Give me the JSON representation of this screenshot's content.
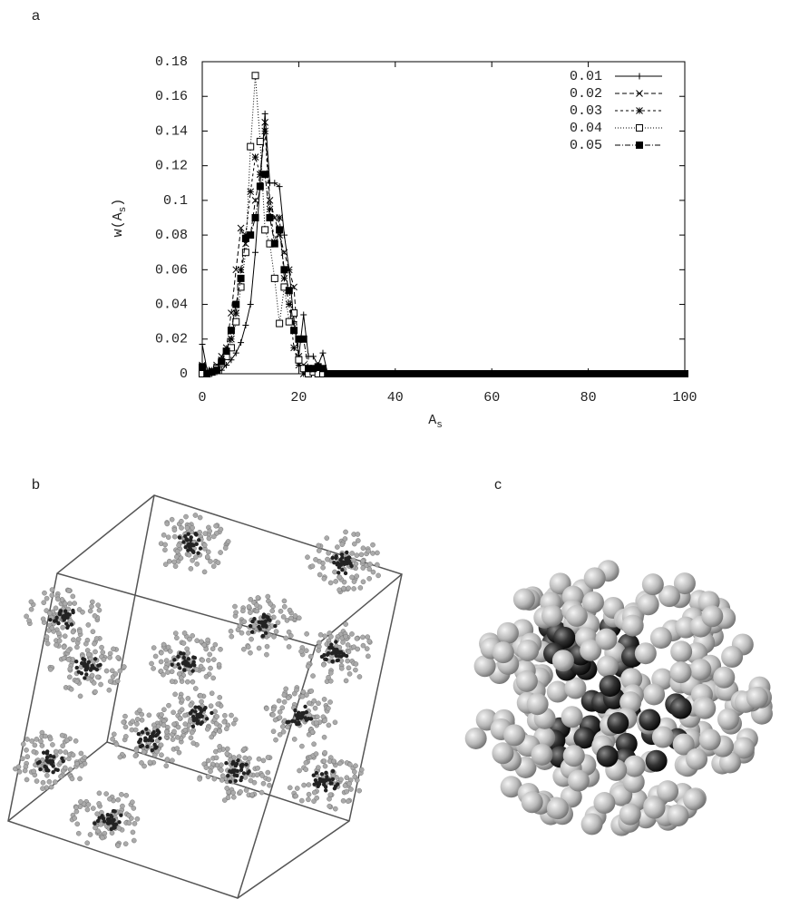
{
  "panel_labels": [
    "a",
    "b",
    "c"
  ],
  "chart_data": {
    "type": "line",
    "xlabel": {
      "text": "A",
      "subscript": "s"
    },
    "ylabel": {
      "text": "w(A",
      "subscript": "s",
      "suffix": ")"
    },
    "xlim": [
      0,
      100
    ],
    "ylim": [
      0,
      0.18
    ],
    "xticks": [
      0,
      20,
      40,
      60,
      80,
      100
    ],
    "yticks": [
      0,
      0.02,
      0.04,
      0.06,
      0.08,
      0.1,
      0.12,
      0.14,
      0.16,
      0.18
    ],
    "legend": "upper-right",
    "x": [
      0,
      1,
      2,
      3,
      4,
      5,
      6,
      7,
      8,
      9,
      10,
      11,
      12,
      13,
      14,
      15,
      16,
      17,
      18,
      19,
      20,
      21,
      22,
      23,
      24,
      25,
      26,
      27,
      28,
      29,
      30,
      31,
      32,
      33,
      34,
      35,
      36,
      37,
      38,
      39,
      40,
      41,
      42,
      43,
      44,
      45,
      46,
      47,
      48,
      49,
      50,
      51,
      52,
      53,
      54,
      55,
      56,
      57,
      58,
      59,
      60,
      61,
      62,
      63,
      64,
      65,
      66,
      67,
      68,
      69,
      70,
      71,
      72,
      73,
      74,
      75,
      76,
      77,
      78,
      79,
      80,
      81,
      82,
      83,
      84,
      85,
      86,
      87,
      88,
      89,
      90,
      91,
      92,
      93,
      94,
      95,
      96,
      97,
      98,
      99,
      100
    ],
    "series": [
      {
        "name": "0.01",
        "color": "#000000",
        "marker": "plus",
        "linestyle": "solid",
        "values": [
          0.017,
          0.002,
          0,
          0.001,
          0.002,
          0.005,
          0.008,
          0.012,
          0.018,
          0.028,
          0.04,
          0.07,
          0.11,
          0.15,
          0.11,
          0.11,
          0.108,
          0.08,
          0.06,
          0.03,
          0.01,
          0.034,
          0.01,
          0.01,
          0.005,
          0.012,
          0,
          0,
          0,
          0,
          0,
          0,
          0,
          0,
          0,
          0,
          0,
          0,
          0,
          0,
          0,
          0,
          0,
          0,
          0,
          0,
          0,
          0,
          0,
          0,
          0,
          0,
          0,
          0,
          0,
          0,
          0,
          0,
          0,
          0,
          0,
          0,
          0,
          0,
          0,
          0,
          0,
          0,
          0,
          0,
          0,
          0,
          0,
          0,
          0,
          0,
          0,
          0,
          0,
          0,
          0,
          0,
          0,
          0,
          0,
          0,
          0,
          0,
          0,
          0,
          0,
          0,
          0,
          0,
          0,
          0,
          0,
          0,
          0,
          0,
          0
        ]
      },
      {
        "name": "0.02",
        "color": "#000000",
        "marker": "cross",
        "linestyle": "dashed",
        "values": [
          0.003,
          0.001,
          0.002,
          0.005,
          0.01,
          0.015,
          0.035,
          0.06,
          0.084,
          0.075,
          0.08,
          0.1,
          0.115,
          0.145,
          0.1,
          0.09,
          0.08,
          0.07,
          0.06,
          0.05,
          0.01,
          0.005,
          0.002,
          0,
          0,
          0,
          0,
          0,
          0,
          0,
          0,
          0,
          0,
          0,
          0,
          0,
          0,
          0,
          0,
          0,
          0,
          0,
          0,
          0,
          0,
          0,
          0,
          0,
          0,
          0,
          0,
          0,
          0,
          0,
          0,
          0,
          0,
          0,
          0,
          0,
          0,
          0,
          0,
          0,
          0,
          0,
          0,
          0,
          0,
          0,
          0,
          0,
          0,
          0,
          0,
          0,
          0,
          0,
          0,
          0,
          0,
          0,
          0,
          0,
          0,
          0,
          0,
          0,
          0,
          0,
          0,
          0,
          0,
          0,
          0,
          0,
          0,
          0,
          0,
          0,
          0
        ]
      },
      {
        "name": "0.03",
        "color": "#000000",
        "marker": "star",
        "linestyle": "short-dashed",
        "values": [
          0.005,
          0,
          0.002,
          0.004,
          0.008,
          0.012,
          0.02,
          0.035,
          0.06,
          0.08,
          0.105,
          0.125,
          0.115,
          0.14,
          0.095,
          0.076,
          0.09,
          0.055,
          0.04,
          0.015,
          0.005,
          0,
          0,
          0.002,
          0,
          0,
          0,
          0,
          0,
          0,
          0,
          0,
          0,
          0,
          0,
          0,
          0,
          0,
          0,
          0,
          0,
          0,
          0,
          0,
          0,
          0,
          0,
          0,
          0,
          0,
          0,
          0,
          0,
          0,
          0,
          0,
          0,
          0,
          0,
          0,
          0,
          0,
          0,
          0,
          0,
          0,
          0,
          0,
          0,
          0,
          0,
          0,
          0,
          0,
          0,
          0,
          0,
          0,
          0,
          0,
          0,
          0,
          0,
          0,
          0,
          0,
          0,
          0,
          0,
          0,
          0,
          0,
          0,
          0,
          0,
          0,
          0,
          0,
          0,
          0,
          0
        ]
      },
      {
        "name": "0.04",
        "color": "#000000",
        "marker": "open-square",
        "linestyle": "dotted",
        "values": [
          0,
          0,
          0.001,
          0.003,
          0.006,
          0.01,
          0.015,
          0.03,
          0.05,
          0.07,
          0.131,
          0.172,
          0.134,
          0.083,
          0.075,
          0.055,
          0.029,
          0.05,
          0.03,
          0.035,
          0.008,
          0.003,
          0,
          0.001,
          0,
          0,
          0,
          0,
          0,
          0,
          0,
          0,
          0,
          0,
          0,
          0,
          0,
          0,
          0,
          0,
          0,
          0,
          0,
          0,
          0,
          0,
          0,
          0,
          0,
          0,
          0,
          0,
          0,
          0,
          0,
          0,
          0,
          0,
          0,
          0,
          0,
          0,
          0,
          0,
          0,
          0,
          0,
          0,
          0,
          0,
          0,
          0,
          0,
          0,
          0,
          0,
          0,
          0,
          0,
          0,
          0,
          0,
          0,
          0,
          0,
          0,
          0,
          0,
          0,
          0,
          0,
          0,
          0,
          0,
          0,
          0,
          0,
          0,
          0,
          0,
          0
        ]
      },
      {
        "name": "0.05",
        "color": "#000000",
        "marker": "filled-square",
        "linestyle": "dash-dot",
        "values": [
          0.004,
          0,
          0.001,
          0.002,
          0.007,
          0.013,
          0.025,
          0.04,
          0.055,
          0.078,
          0.08,
          0.09,
          0.108,
          0.115,
          0.09,
          0.075,
          0.083,
          0.06,
          0.048,
          0.025,
          0.02,
          0.02,
          0.003,
          0.003,
          0.004,
          0.003,
          0,
          0,
          0,
          0,
          0,
          0,
          0,
          0,
          0,
          0,
          0,
          0,
          0,
          0,
          0,
          0,
          0,
          0,
          0,
          0,
          0,
          0,
          0,
          0,
          0,
          0,
          0,
          0,
          0,
          0,
          0,
          0,
          0,
          0,
          0,
          0,
          0,
          0,
          0,
          0,
          0,
          0,
          0,
          0,
          0,
          0,
          0,
          0,
          0,
          0,
          0,
          0,
          0,
          0,
          0,
          0,
          0,
          0,
          0,
          0,
          0,
          0,
          0,
          0,
          0,
          0,
          0,
          0,
          0,
          0,
          0,
          0,
          0,
          0,
          0
        ]
      }
    ]
  }
}
